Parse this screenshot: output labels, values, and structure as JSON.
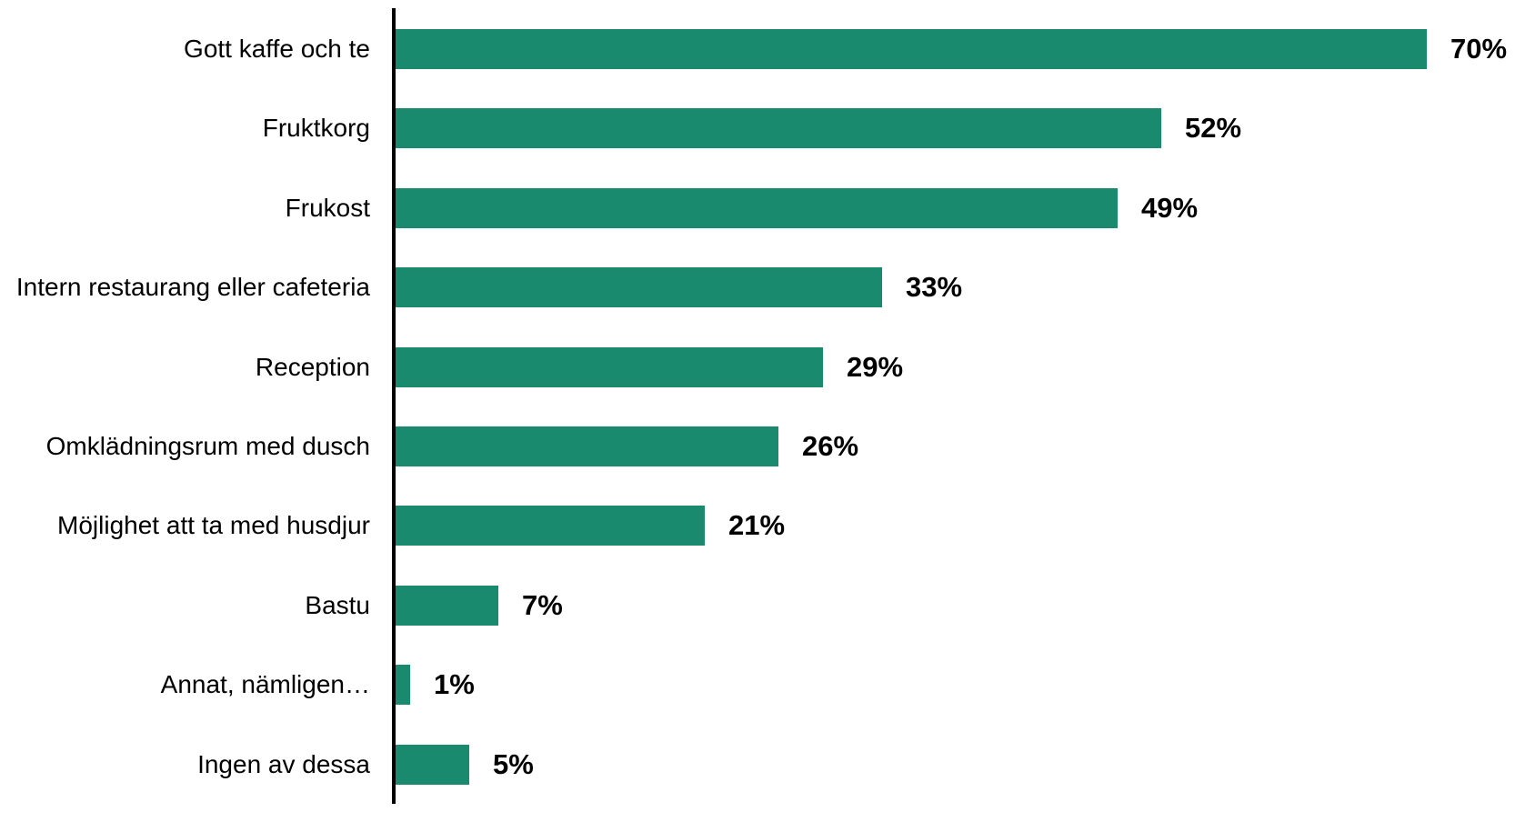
{
  "chart_data": {
    "type": "bar",
    "orientation": "horizontal",
    "title": "",
    "xlabel": "",
    "ylabel": "",
    "categories": [
      "Gott kaffe och te",
      "Fruktkorg",
      "Frukost",
      "Intern restaurang eller cafeteria",
      "Reception",
      "Omklädningsrum med dusch",
      "Möjlighet att ta med husdjur",
      "Bastu",
      "Annat, nämligen…",
      "Ingen av dessa"
    ],
    "values": [
      70,
      52,
      49,
      33,
      29,
      26,
      21,
      7,
      1,
      5
    ],
    "value_labels": [
      "70%",
      "52%",
      "49%",
      "33%",
      "29%",
      "26%",
      "21%",
      "7%",
      "1%",
      "5%"
    ],
    "value_suffix": "%",
    "xlim": [
      0,
      76
    ],
    "grid": false,
    "legend": "none",
    "colors": {
      "bar": "#1a8a6e",
      "axis": "#000000",
      "category_label": "#000000",
      "value_label": "#000000",
      "background": "#ffffff"
    }
  }
}
